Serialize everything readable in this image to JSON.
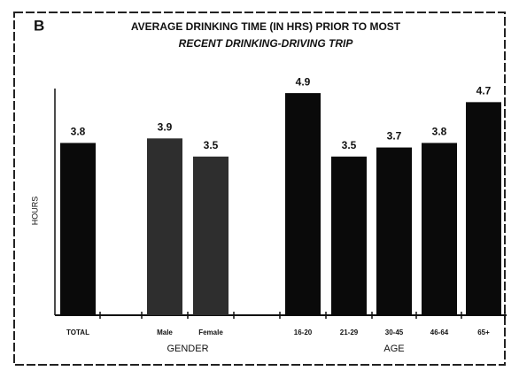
{
  "chart_data": {
    "type": "bar",
    "panel_label": "B",
    "title": [
      "AVERAGE DRINKING TIME (IN HRS) PRIOR TO MOST",
      "RECENT DRINKING-DRIVING TRIP"
    ],
    "y_label": "HOURS",
    "categories": [
      "TOTAL",
      "Male",
      "Female",
      "16-20",
      "21-29",
      "30-45",
      "46-64",
      "65+"
    ],
    "values": [
      3.8,
      3.9,
      3.5,
      4.9,
      3.5,
      3.7,
      3.8,
      4.7
    ],
    "colors": [
      "#0a0a0a",
      "#2e2e2e",
      "#2e2e2e",
      "#0a0a0a",
      "#0a0a0a",
      "#0a0a0a",
      "#0a0a0a",
      "#0a0a0a"
    ],
    "group_labels": [
      "GENDER",
      "AGE"
    ],
    "ylim": [
      0,
      5
    ]
  }
}
